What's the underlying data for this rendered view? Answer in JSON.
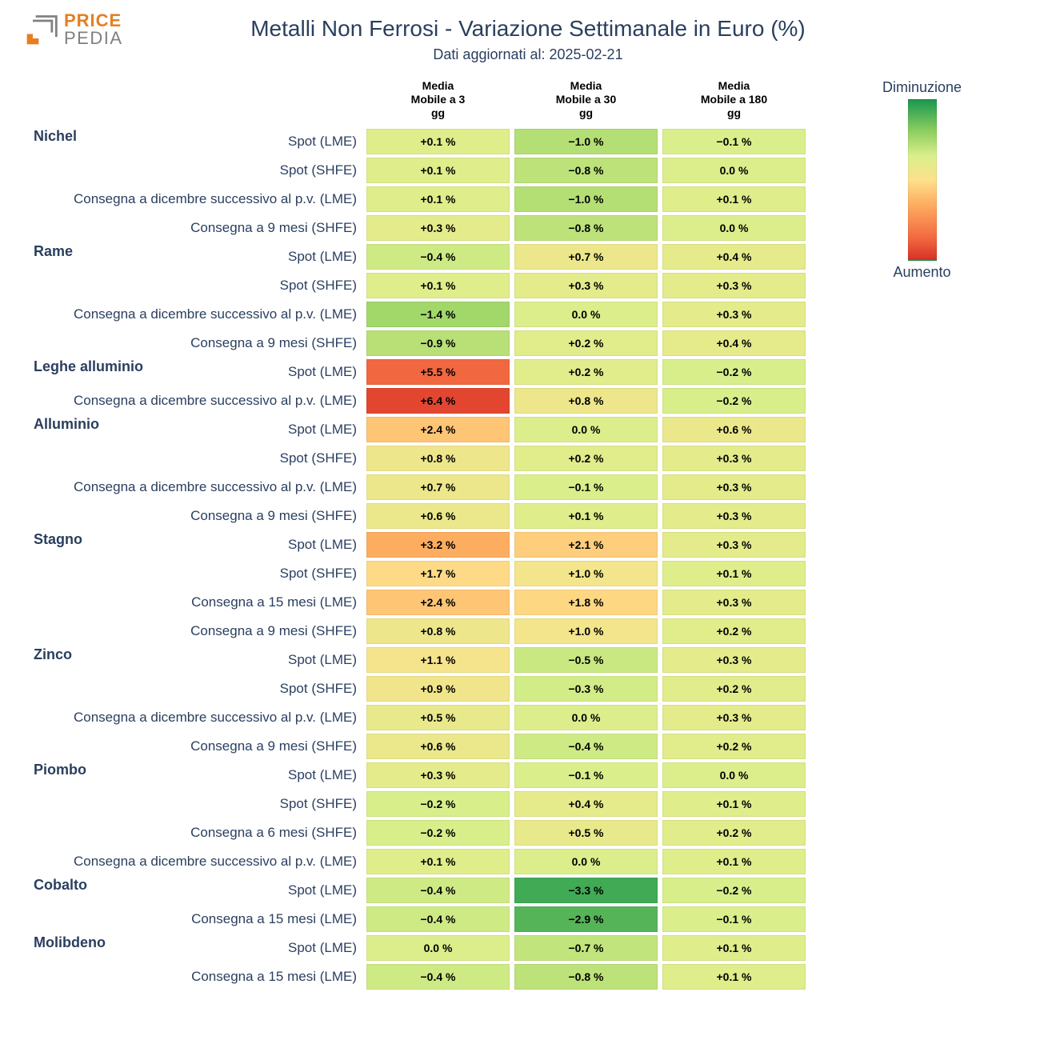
{
  "brand": {
    "name_top": "PRICE",
    "name_bottom": "PEDIA"
  },
  "title": "Metalli Non Ferrosi - Variazione Settimanale in Euro (%)",
  "subtitle": "Dati aggiornati al: 2025-02-21",
  "columns": [
    "Media\nMobile a 3\ngg",
    "Media\nMobile a 30\ngg",
    "Media\nMobile a 180\ngg"
  ],
  "legend": {
    "top": "Diminuzione",
    "bottom": "Aumento"
  },
  "color_scale": {
    "domain_min": -4.0,
    "domain_max": 7.0,
    "stops": [
      {
        "t": 0.0,
        "color": "#1a9850"
      },
      {
        "t": 0.2,
        "color": "#91cf60"
      },
      {
        "t": 0.35,
        "color": "#d9ef8b"
      },
      {
        "t": 0.5,
        "color": "#fee08b"
      },
      {
        "t": 0.65,
        "color": "#fdae61"
      },
      {
        "t": 0.85,
        "color": "#f46d43"
      },
      {
        "t": 1.0,
        "color": "#d73027"
      }
    ]
  },
  "cell_style": {
    "font_size": 14,
    "font_weight": 700,
    "text_color": "#000000"
  },
  "rows": [
    {
      "group": "Nichel",
      "label": "Spot (LME)",
      "values": [
        0.1,
        -1.0,
        -0.1
      ]
    },
    {
      "group": null,
      "label": "Spot (SHFE)",
      "values": [
        0.1,
        -0.8,
        0.0
      ]
    },
    {
      "group": null,
      "label": "Consegna a dicembre successivo al p.v. (LME)",
      "values": [
        0.1,
        -1.0,
        0.1
      ]
    },
    {
      "group": null,
      "label": "Consegna a 9 mesi (SHFE)",
      "values": [
        0.3,
        -0.8,
        0.0
      ]
    },
    {
      "group": "Rame",
      "label": "Spot (LME)",
      "values": [
        -0.4,
        0.7,
        0.4
      ]
    },
    {
      "group": null,
      "label": "Spot (SHFE)",
      "values": [
        0.1,
        0.3,
        0.3
      ]
    },
    {
      "group": null,
      "label": "Consegna a dicembre successivo al p.v. (LME)",
      "values": [
        -1.4,
        0.0,
        0.3
      ]
    },
    {
      "group": null,
      "label": "Consegna a 9 mesi (SHFE)",
      "values": [
        -0.9,
        0.2,
        0.4
      ]
    },
    {
      "group": "Leghe alluminio",
      "label": "Spot (LME)",
      "values": [
        5.5,
        0.2,
        -0.2
      ]
    },
    {
      "group": null,
      "label": "Consegna a dicembre successivo al p.v. (LME)",
      "values": [
        6.4,
        0.8,
        -0.2
      ]
    },
    {
      "group": "Alluminio",
      "label": "Spot (LME)",
      "values": [
        2.4,
        0.0,
        0.6
      ]
    },
    {
      "group": null,
      "label": "Spot (SHFE)",
      "values": [
        0.8,
        0.2,
        0.3
      ]
    },
    {
      "group": null,
      "label": "Consegna a dicembre successivo al p.v. (LME)",
      "values": [
        0.7,
        -0.1,
        0.3
      ]
    },
    {
      "group": null,
      "label": "Consegna a 9 mesi (SHFE)",
      "values": [
        0.6,
        0.1,
        0.3
      ]
    },
    {
      "group": "Stagno",
      "label": "Spot (LME)",
      "values": [
        3.2,
        2.1,
        0.3
      ]
    },
    {
      "group": null,
      "label": "Spot (SHFE)",
      "values": [
        1.7,
        1.0,
        0.1
      ]
    },
    {
      "group": null,
      "label": "Consegna a 15 mesi (LME)",
      "values": [
        2.4,
        1.8,
        0.3
      ]
    },
    {
      "group": null,
      "label": "Consegna a 9 mesi (SHFE)",
      "values": [
        0.8,
        1.0,
        0.2
      ]
    },
    {
      "group": "Zinco",
      "label": "Spot (LME)",
      "values": [
        1.1,
        -0.5,
        0.3
      ]
    },
    {
      "group": null,
      "label": "Spot (SHFE)",
      "values": [
        0.9,
        -0.3,
        0.2
      ]
    },
    {
      "group": null,
      "label": "Consegna a dicembre successivo al p.v. (LME)",
      "values": [
        0.5,
        0.0,
        0.3
      ]
    },
    {
      "group": null,
      "label": "Consegna a 9 mesi (SHFE)",
      "values": [
        0.6,
        -0.4,
        0.2
      ]
    },
    {
      "group": "Piombo",
      "label": "Spot (LME)",
      "values": [
        0.3,
        -0.1,
        0.0
      ]
    },
    {
      "group": null,
      "label": "Spot (SHFE)",
      "values": [
        -0.2,
        0.4,
        0.1
      ]
    },
    {
      "group": null,
      "label": "Consegna a 6 mesi (SHFE)",
      "values": [
        -0.2,
        0.5,
        0.2
      ]
    },
    {
      "group": null,
      "label": "Consegna a dicembre successivo al p.v. (LME)",
      "values": [
        0.1,
        0.0,
        0.1
      ]
    },
    {
      "group": "Cobalto",
      "label": "Spot (LME)",
      "values": [
        -0.4,
        -3.3,
        -0.2
      ]
    },
    {
      "group": null,
      "label": "Consegna a 15 mesi (LME)",
      "values": [
        -0.4,
        -2.9,
        -0.1
      ]
    },
    {
      "group": "Molibdeno",
      "label": "Spot (LME)",
      "values": [
        0.0,
        -0.7,
        0.1
      ]
    },
    {
      "group": null,
      "label": "Consegna a 15 mesi (LME)",
      "values": [
        -0.4,
        -0.8,
        0.1
      ]
    }
  ]
}
